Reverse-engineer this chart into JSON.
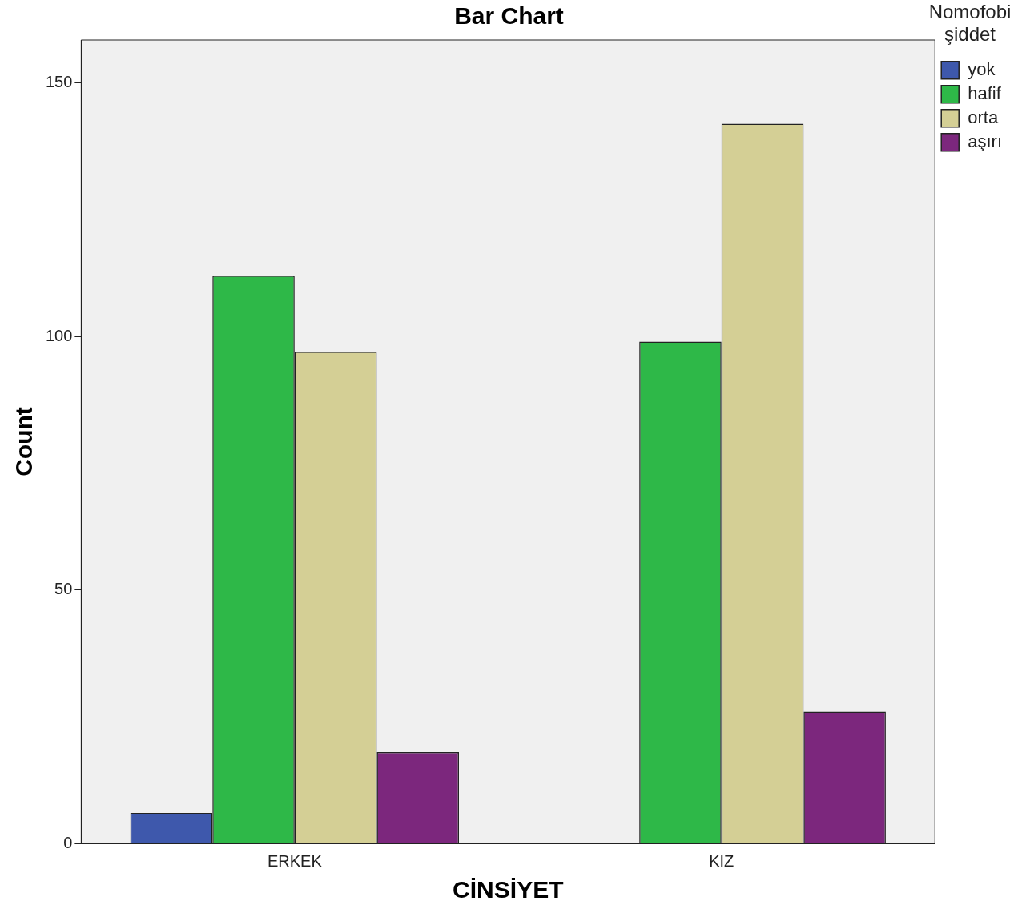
{
  "chart_data": {
    "type": "bar",
    "title": "Bar Chart",
    "xlabel": "CİNSİYET",
    "ylabel": "Count",
    "legend_title": "Nomofobi şiddet",
    "categories": [
      "ERKEK",
      "KIZ"
    ],
    "series": [
      {
        "name": "yok",
        "color": "#3e58ac",
        "values": [
          6,
          0
        ]
      },
      {
        "name": "hafif",
        "color": "#2eb848",
        "values": [
          112,
          99
        ]
      },
      {
        "name": "orta",
        "color": "#d4cf95",
        "values": [
          97,
          142
        ]
      },
      {
        "name": "aşırı",
        "color": "#7c277d",
        "values": [
          18,
          26
        ]
      }
    ],
    "ylim": [
      0,
      158.5
    ],
    "yticks": [
      0,
      50,
      100,
      150
    ],
    "grid": false,
    "legend": "right"
  }
}
